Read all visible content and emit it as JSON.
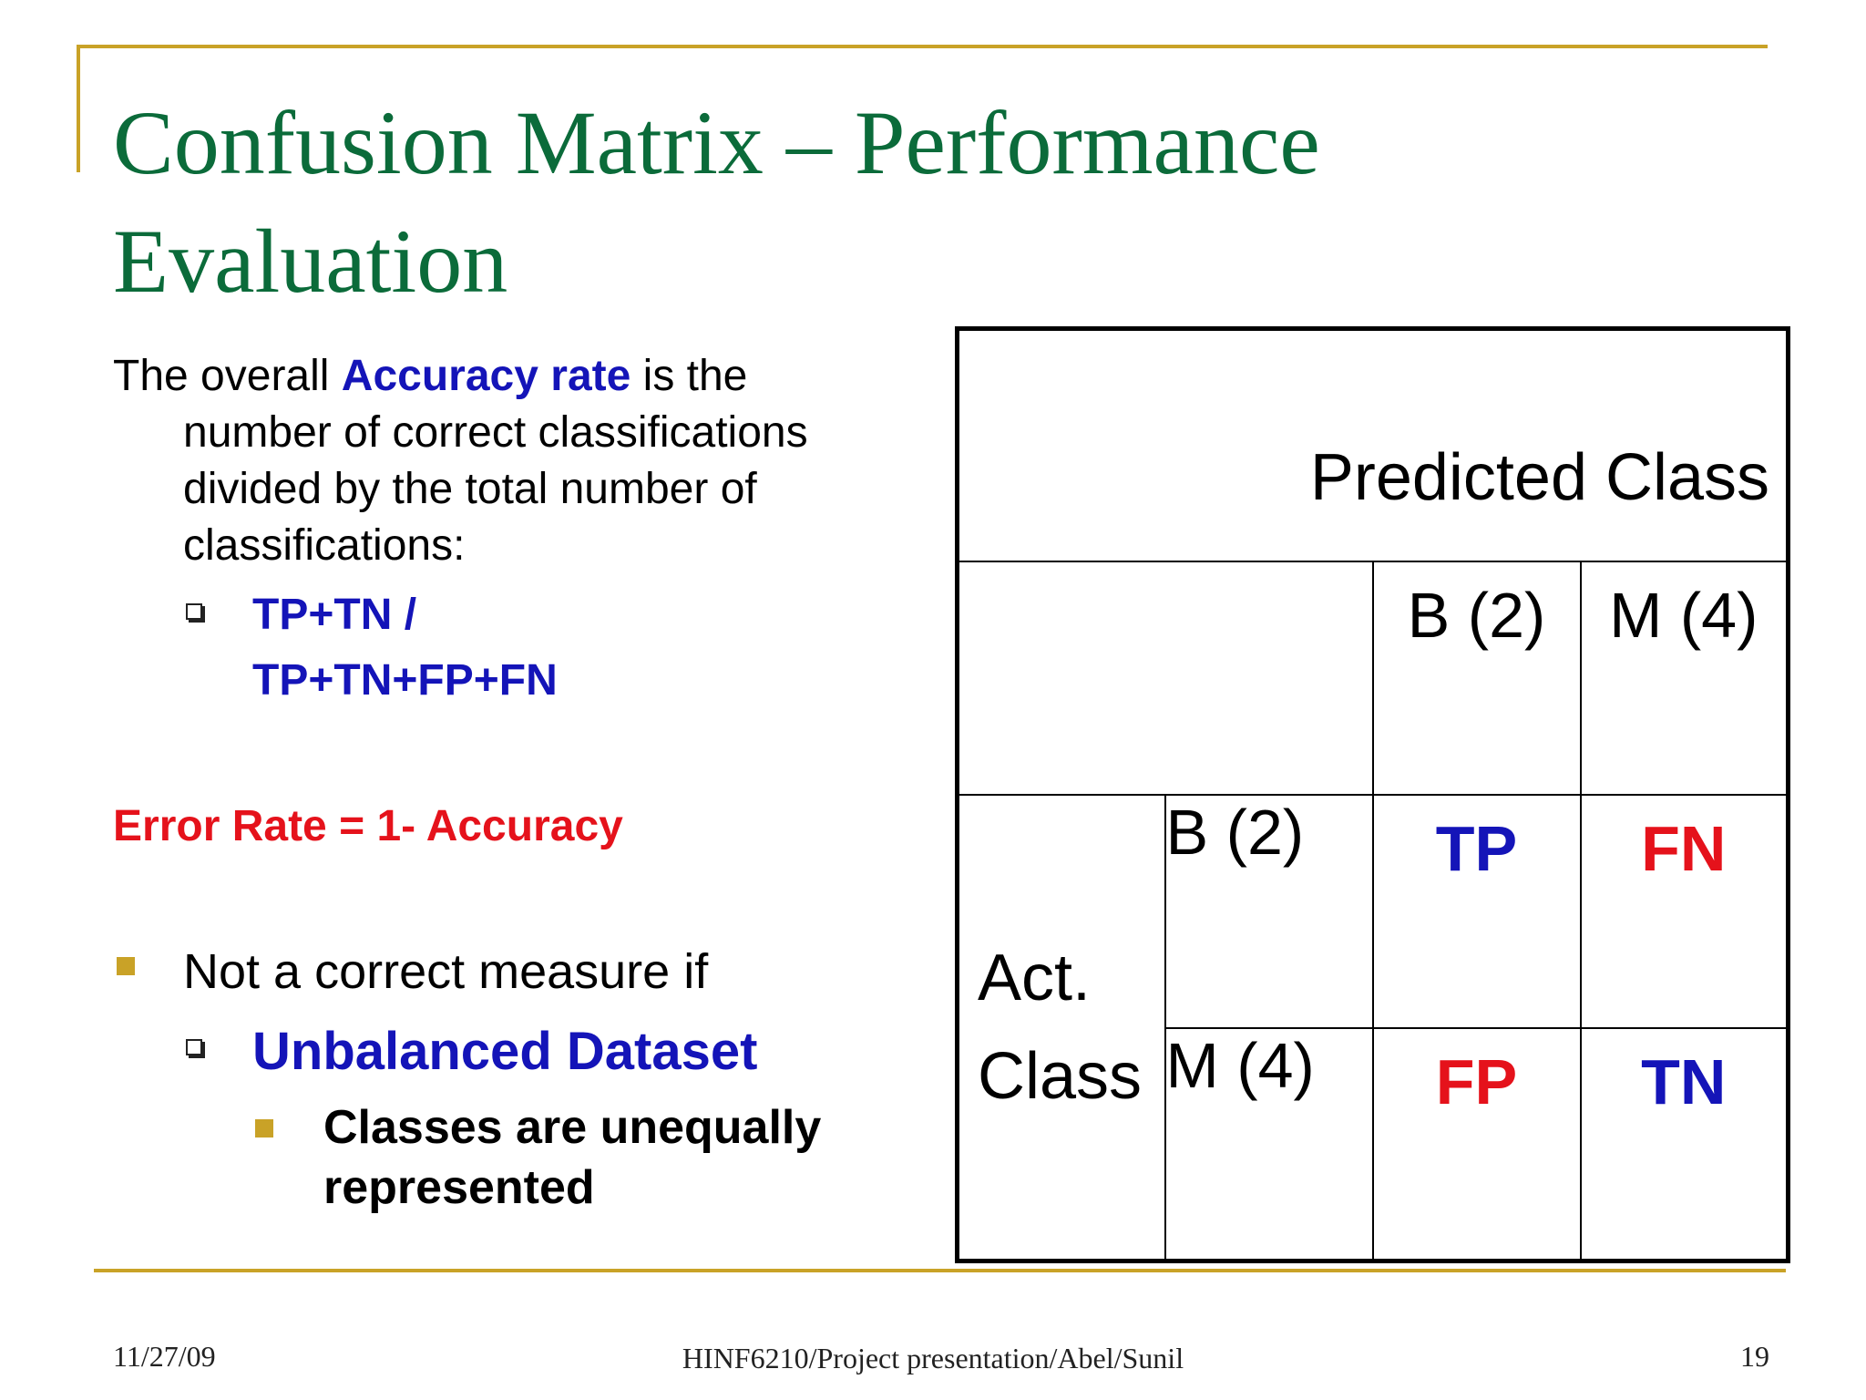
{
  "title": {
    "line1": "Confusion Matrix – Performance",
    "line2": "Evaluation"
  },
  "accuracy": {
    "lead": "The overall ",
    "highlight": "Accuracy rate",
    "after": " is the",
    "line2": "number of correct classifications",
    "line3": "divided by the total number of",
    "line4": "classifications:",
    "formula_line1": "TP+TN /",
    "formula_line2": "TP+TN+FP+FN"
  },
  "error_rate": "Error Rate = 1- Accuracy",
  "measure": {
    "bullet": "Not a correct measure if",
    "sub": "Unbalanced Dataset",
    "subsub_line1": "Classes are unequally",
    "subsub_line2": "represented"
  },
  "matrix": {
    "predicted_header": "Predicted Class",
    "pred_b": "B (2)",
    "pred_m": "M (4)",
    "act_line1": "Act.",
    "act_line2": "Class",
    "act_b": "B (2)",
    "act_m": "M (4)",
    "tp": "TP",
    "fn": "FN",
    "fp": "FP",
    "tn": "TN"
  },
  "footer": {
    "date": "11/27/09",
    "center": "HINF6210/Project presentation/Abel/Sunil",
    "page": "19"
  },
  "colors": {
    "accent": "#C9A227",
    "title": "#0B6B3A",
    "blue": "#1414B8",
    "red": "#E5121B"
  }
}
